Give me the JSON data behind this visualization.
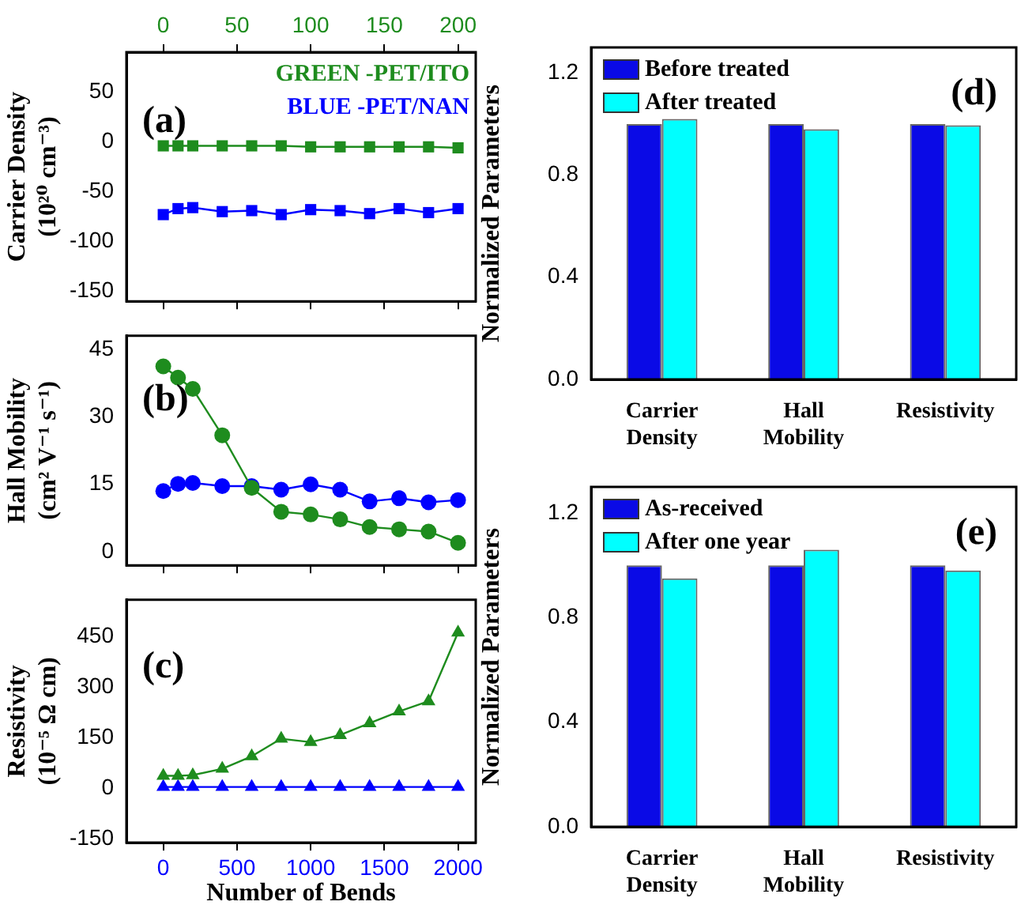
{
  "chart_data": [
    {
      "type": "line",
      "ylabel": "Carrier Density (10²⁰ cm⁻³)",
      "annotations": [
        "(a)"
      ],
      "x": [
        0,
        100,
        200,
        400,
        600,
        800,
        1000,
        1200,
        1400,
        1600,
        1800,
        2000
      ],
      "xlim": [
        -250,
        2120
      ],
      "xticks": [
        0,
        500,
        1000,
        1500,
        2000
      ],
      "x2lim": [
        -25,
        212
      ],
      "x2ticks": [
        0,
        50,
        100,
        150,
        200
      ],
      "ylim": [
        -160,
        90
      ],
      "yticks": [
        -150,
        -100,
        -50,
        0,
        50
      ],
      "marker": "square",
      "legend": "top right",
      "tick_labels": "y",
      "series": [
        {
          "name": "GREEN -PET/ITO",
          "color": "#1e8c1e",
          "values": [
            -4,
            -4,
            -4,
            -4,
            -4,
            -4,
            -5,
            -5,
            -5,
            -5,
            -5,
            -6
          ]
        },
        {
          "name": "BLUE -PET/NAN",
          "color": "#0000ff",
          "values": [
            -73,
            -67,
            -66,
            -70,
            -69,
            -73,
            -68,
            -69,
            -72,
            -67,
            -71,
            -67
          ]
        }
      ]
    },
    {
      "type": "line",
      "ylabel": "Hall Mobility (cm² V⁻¹ s⁻¹)",
      "annotations": [
        "(b)"
      ],
      "x": [
        0,
        100,
        200,
        400,
        600,
        800,
        1000,
        1200,
        1400,
        1600,
        1800,
        2000
      ],
      "xlim": [
        -250,
        2120
      ],
      "xticks": [
        0,
        500,
        1000,
        1500,
        2000
      ],
      "ylim": [
        -3,
        48
      ],
      "yticks": [
        0,
        15,
        30,
        45
      ],
      "marker": "circle",
      "tick_labels": "y",
      "series": [
        {
          "color": "#1e8c1e",
          "values": [
            41.2,
            38.7,
            36.2,
            25.9,
            14.2,
            8.9,
            8.3,
            7.2,
            5.5,
            5.0,
            4.5,
            2.0
          ]
        },
        {
          "color": "#0000ff",
          "values": [
            13.5,
            15.1,
            15.3,
            14.6,
            14.6,
            13.8,
            15.0,
            13.8,
            11.2,
            11.9,
            11.0,
            11.5
          ]
        }
      ]
    },
    {
      "type": "line",
      "ylabel": "Resistivity (10⁻⁵ Ω cm)",
      "xlabel": "Number of Bends",
      "annotations": [
        "(c)"
      ],
      "x": [
        0,
        100,
        200,
        400,
        600,
        800,
        1000,
        1200,
        1400,
        1600,
        1800,
        2000
      ],
      "xlim": [
        -250,
        2120
      ],
      "xticks": [
        0,
        500,
        1000,
        1500,
        2000
      ],
      "ylim": [
        -160,
        560
      ],
      "yticks": [
        -150,
        0,
        150,
        300,
        450
      ],
      "marker": "triangle",
      "series": [
        {
          "color": "#1e8c1e",
          "values": [
            38,
            38,
            40,
            59,
            96,
            148,
            138,
            159,
            194,
            229,
            259,
            463
          ]
        },
        {
          "color": "#0000ff",
          "values": [
            5,
            5,
            5,
            5,
            5,
            5,
            5,
            5,
            5,
            5,
            5,
            5
          ]
        }
      ]
    },
    {
      "type": "bar",
      "ylabel": "Normalized Parameters",
      "annotations": [
        "(d)"
      ],
      "categories": [
        "Carrier Density",
        "Hall Mobility",
        "Resistivity"
      ],
      "ylim": [
        0,
        1.3
      ],
      "yticks": [
        {
          "value": 0,
          "label": "0.0"
        },
        0.4,
        0.8,
        1.2
      ],
      "legend": "top left",
      "series": [
        {
          "name": "Before treated",
          "color": "#0a0ae6",
          "values": [
            1,
            1,
            1
          ]
        },
        {
          "name": "After treated",
          "color": "#00ffff",
          "values": [
            1.02,
            0.98,
            0.995
          ]
        }
      ]
    },
    {
      "type": "bar",
      "ylabel": "Normalized Parameters",
      "annotations": [
        "(e)"
      ],
      "categories": [
        "Carrier Density",
        "Hall Mobility",
        "Resistivity"
      ],
      "ylim": [
        0,
        1.3
      ],
      "yticks": [
        {
          "value": 0,
          "label": "0.0"
        },
        0.4,
        0.8,
        1.2
      ],
      "legend": "top left",
      "series": [
        {
          "name": "As-received",
          "color": "#0a0ae6",
          "values": [
            1,
            1,
            1
          ]
        },
        {
          "name": "After one year",
          "color": "#00ffff",
          "values": [
            0.95,
            1.06,
            0.98
          ]
        }
      ]
    }
  ]
}
